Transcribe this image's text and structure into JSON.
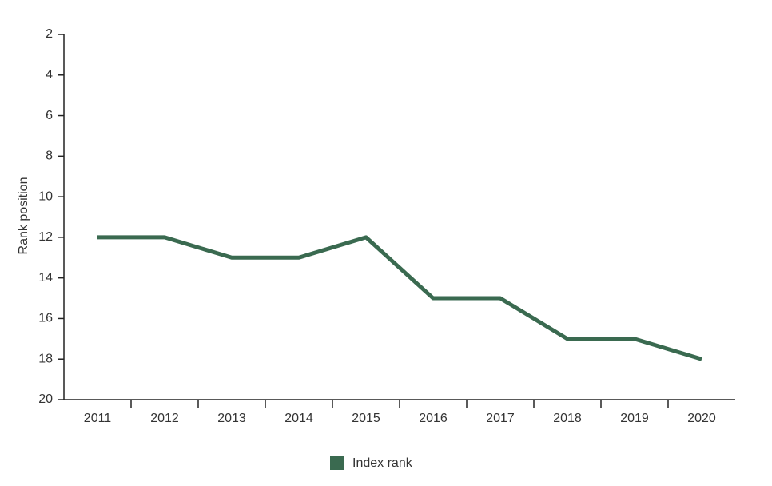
{
  "chart_data": {
    "type": "line",
    "y_label": "Rank position",
    "categories": [
      "2011",
      "2012",
      "2013",
      "2014",
      "2015",
      "2016",
      "2017",
      "2018",
      "2019",
      "2020"
    ],
    "series": [
      {
        "name": "Index rank",
        "color": "#3a6a50",
        "values": [
          12,
          12,
          13,
          13,
          12,
          15,
          15,
          17,
          17,
          18
        ]
      }
    ],
    "ylim": [
      2,
      20
    ],
    "y_inverted": true,
    "yticks": [
      2,
      4,
      6,
      8,
      10,
      12,
      14,
      16,
      18,
      20
    ],
    "grid": false,
    "legend": "bottom"
  }
}
